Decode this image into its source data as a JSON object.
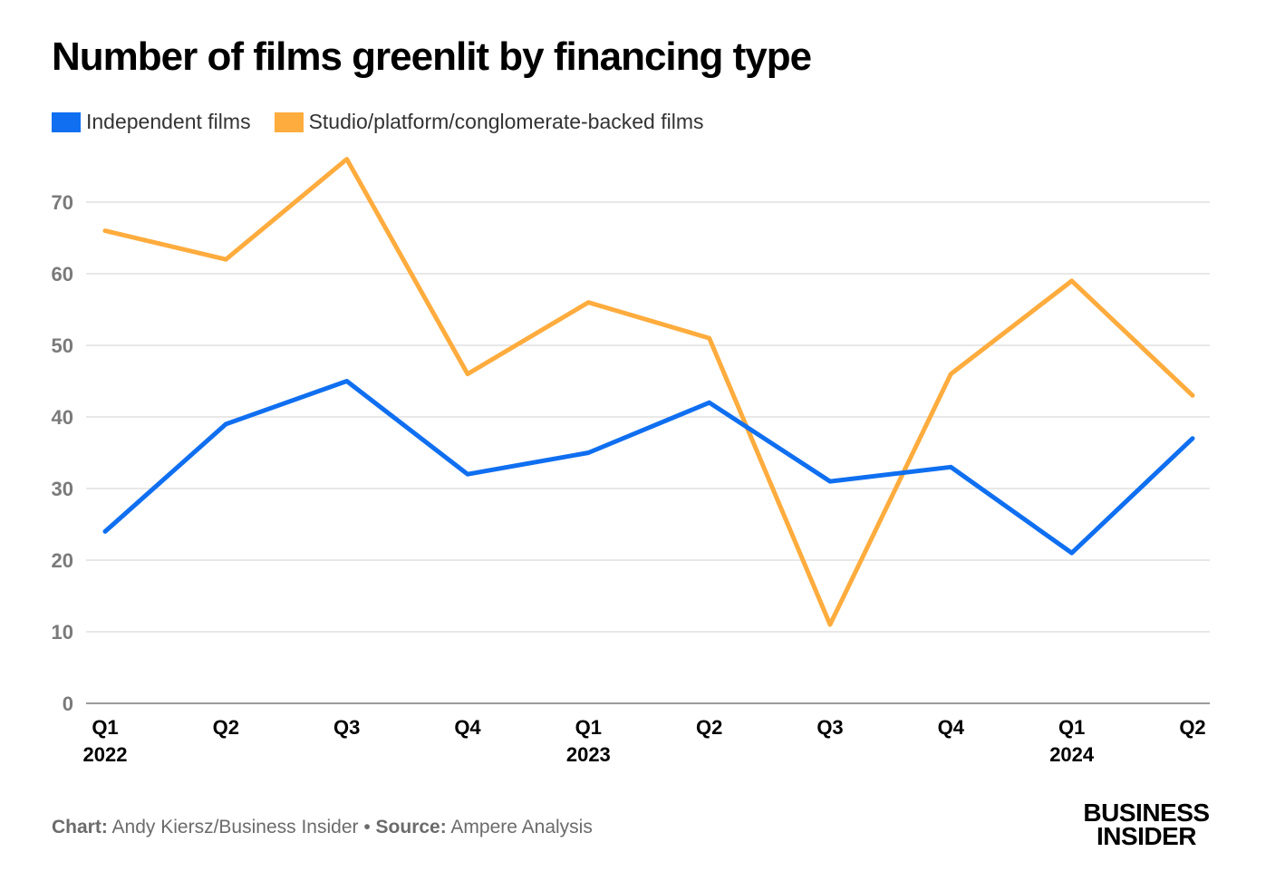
{
  "title": "Number of films greenlit by financing type",
  "footer": {
    "chart_label": "Chart:",
    "chart_credit": "Andy Kiersz/Business Insider",
    "separator": "•",
    "source_label": "Source:",
    "source_credit": "Ampere Analysis"
  },
  "logo": {
    "line1": "BUSINESS",
    "line2": "INSIDER"
  },
  "chart_data": {
    "type": "line",
    "title": "Number of films greenlit by financing type",
    "xlabel": "",
    "ylabel": "",
    "categories": [
      "Q1",
      "Q2",
      "Q3",
      "Q4",
      "Q1",
      "Q2",
      "Q3",
      "Q4",
      "Q1",
      "Q2"
    ],
    "year_labels": [
      "2022",
      "",
      "",
      "",
      "2023",
      "",
      "",
      "",
      "2024",
      ""
    ],
    "y_ticks": [
      "0",
      "10",
      "20",
      "30",
      "40",
      "50",
      "60",
      "70"
    ],
    "ylim": [
      0,
      77
    ],
    "grid": true,
    "legend_position": "top-left",
    "series": [
      {
        "name": "Independent films",
        "color": "#0f6ff0",
        "values": [
          24,
          39,
          45,
          32,
          35,
          42,
          31,
          33,
          21,
          37
        ]
      },
      {
        "name": "Studio/platform/conglomerate-backed films",
        "color": "#ffac3e",
        "values": [
          66,
          62,
          76,
          46,
          56,
          51,
          11,
          46,
          59,
          43
        ]
      }
    ]
  }
}
